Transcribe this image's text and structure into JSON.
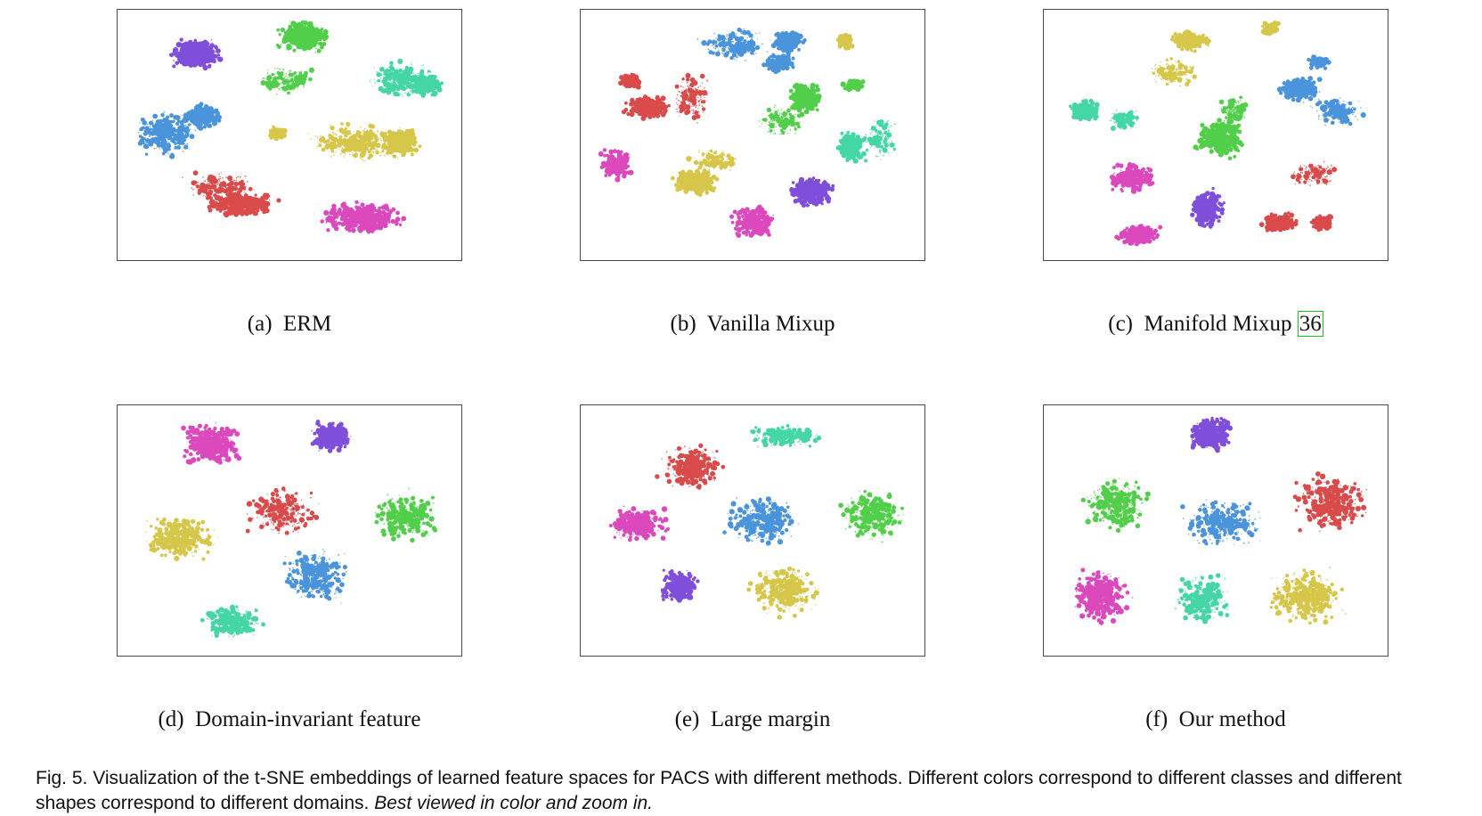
{
  "panels": [
    {
      "label": "(a)",
      "title": "ERM",
      "ref": ""
    },
    {
      "label": "(b)",
      "title": "Vanilla Mixup",
      "ref": ""
    },
    {
      "label": "(c)",
      "title": "Manifold Mixup",
      "ref": "36"
    },
    {
      "label": "(d)",
      "title": "Domain-invariant feature",
      "ref": ""
    },
    {
      "label": "(e)",
      "title": "Large margin",
      "ref": ""
    },
    {
      "label": "(f)",
      "title": "Our method",
      "ref": ""
    }
  ],
  "caption": {
    "main": "Fig. 5. Visualization of the t-SNE embeddings of learned feature spaces for PACS with different methods. Different colors correspond to different classes and different shapes correspond to different domains.",
    "emphasis": "Best viewed in color and zoom in."
  },
  "class_colors": [
    "#7f4fdc",
    "#52cf4a",
    "#4a94dc",
    "#d6c64a",
    "#d94b4b",
    "#db49bd",
    "#45d6a6"
  ]
}
